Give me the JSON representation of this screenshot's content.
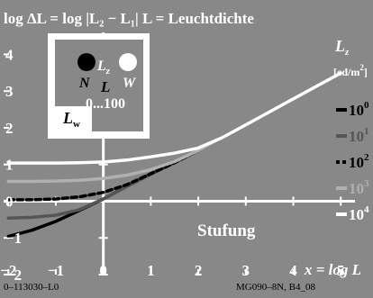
{
  "colors": {
    "background": "#888888",
    "foreground": "#ffffff",
    "black": "#000000",
    "dark_grey": "#555555",
    "light_grey": "#b0b0b0",
    "white": "#ffffff"
  },
  "chart_data": {
    "type": "line",
    "title": "log ΔL = log |L₂ − L₁|   L = Leuchtdichte",
    "xlabel": "x = log L",
    "ylabel": "",
    "xlim": [
      -2.1,
      5.3
    ],
    "ylim": [
      -2.0,
      4.6
    ],
    "xticks": [
      -2,
      -1,
      0,
      1,
      2,
      3,
      4,
      5
    ],
    "yticks": [
      -2,
      -1,
      0,
      1,
      2,
      3,
      4
    ],
    "grid": false,
    "annotation": "Stufung",
    "inset": {
      "letters": [
        "N",
        "L",
        "W"
      ],
      "lz_label": "L",
      "lz_sub": "z",
      "range_label": "0...100",
      "lw_label": "L",
      "lw_sub": "w"
    },
    "legend": {
      "title": "L",
      "title_sub": "z",
      "units": "[cd/m",
      "units_sup": "2",
      "units_close": "]",
      "base": "10",
      "exponents": [
        "0",
        "1",
        "2",
        "3",
        "4"
      ]
    },
    "series": [
      {
        "lz_exp": 0,
        "color": "#000000",
        "dash": "",
        "x": [
          -2,
          -1.5,
          -1,
          -0.5,
          0,
          0.5,
          1,
          1.5,
          2,
          2.5,
          3,
          4,
          5
        ],
        "y": [
          -0.96,
          -0.79,
          -0.55,
          -0.25,
          0.06,
          0.41,
          0.74,
          1.05,
          1.38,
          1.73,
          2.08,
          2.79,
          3.49
        ]
      },
      {
        "lz_exp": 1,
        "color": "#555555",
        "dash": "",
        "x": [
          -2,
          -1.5,
          -1,
          -0.5,
          0,
          0.5,
          1,
          1.5,
          2,
          2.5,
          3,
          4,
          5
        ],
        "y": [
          -0.46,
          -0.44,
          -0.38,
          -0.23,
          0.06,
          0.41,
          0.74,
          1.05,
          1.38,
          1.73,
          2.08,
          2.79,
          3.49
        ]
      },
      {
        "lz_exp": 2,
        "color": "#000000",
        "dash": "6 4",
        "x": [
          -2,
          -1.5,
          -1,
          -0.5,
          0,
          0.5,
          1,
          1.5,
          2,
          2.5,
          3,
          4,
          5
        ],
        "y": [
          0.04,
          0.04,
          0.06,
          0.12,
          0.24,
          0.45,
          0.75,
          1.05,
          1.38,
          1.73,
          2.08,
          2.79,
          3.49
        ]
      },
      {
        "lz_exp": 3,
        "color": "#b0b0b0",
        "dash": "",
        "x": [
          -2,
          -1.5,
          -1,
          -0.5,
          0,
          0.5,
          1,
          1.5,
          2,
          2.5,
          3,
          4,
          5
        ],
        "y": [
          0.54,
          0.54,
          0.55,
          0.57,
          0.62,
          0.71,
          0.86,
          1.08,
          1.38,
          1.73,
          2.08,
          2.79,
          3.49
        ]
      },
      {
        "lz_exp": 4,
        "color": "#ffffff",
        "dash": "",
        "x": [
          -2,
          -1.5,
          -1,
          -0.5,
          0,
          0.5,
          1,
          1.5,
          2,
          2.5,
          3,
          4,
          5
        ],
        "y": [
          1.04,
          1.04,
          1.04,
          1.05,
          1.07,
          1.12,
          1.21,
          1.31,
          1.45,
          1.73,
          2.08,
          2.79,
          3.49
        ]
      }
    ]
  },
  "footer": {
    "left": "0–113030–L0",
    "right": "MG090–8N, B4_08"
  }
}
